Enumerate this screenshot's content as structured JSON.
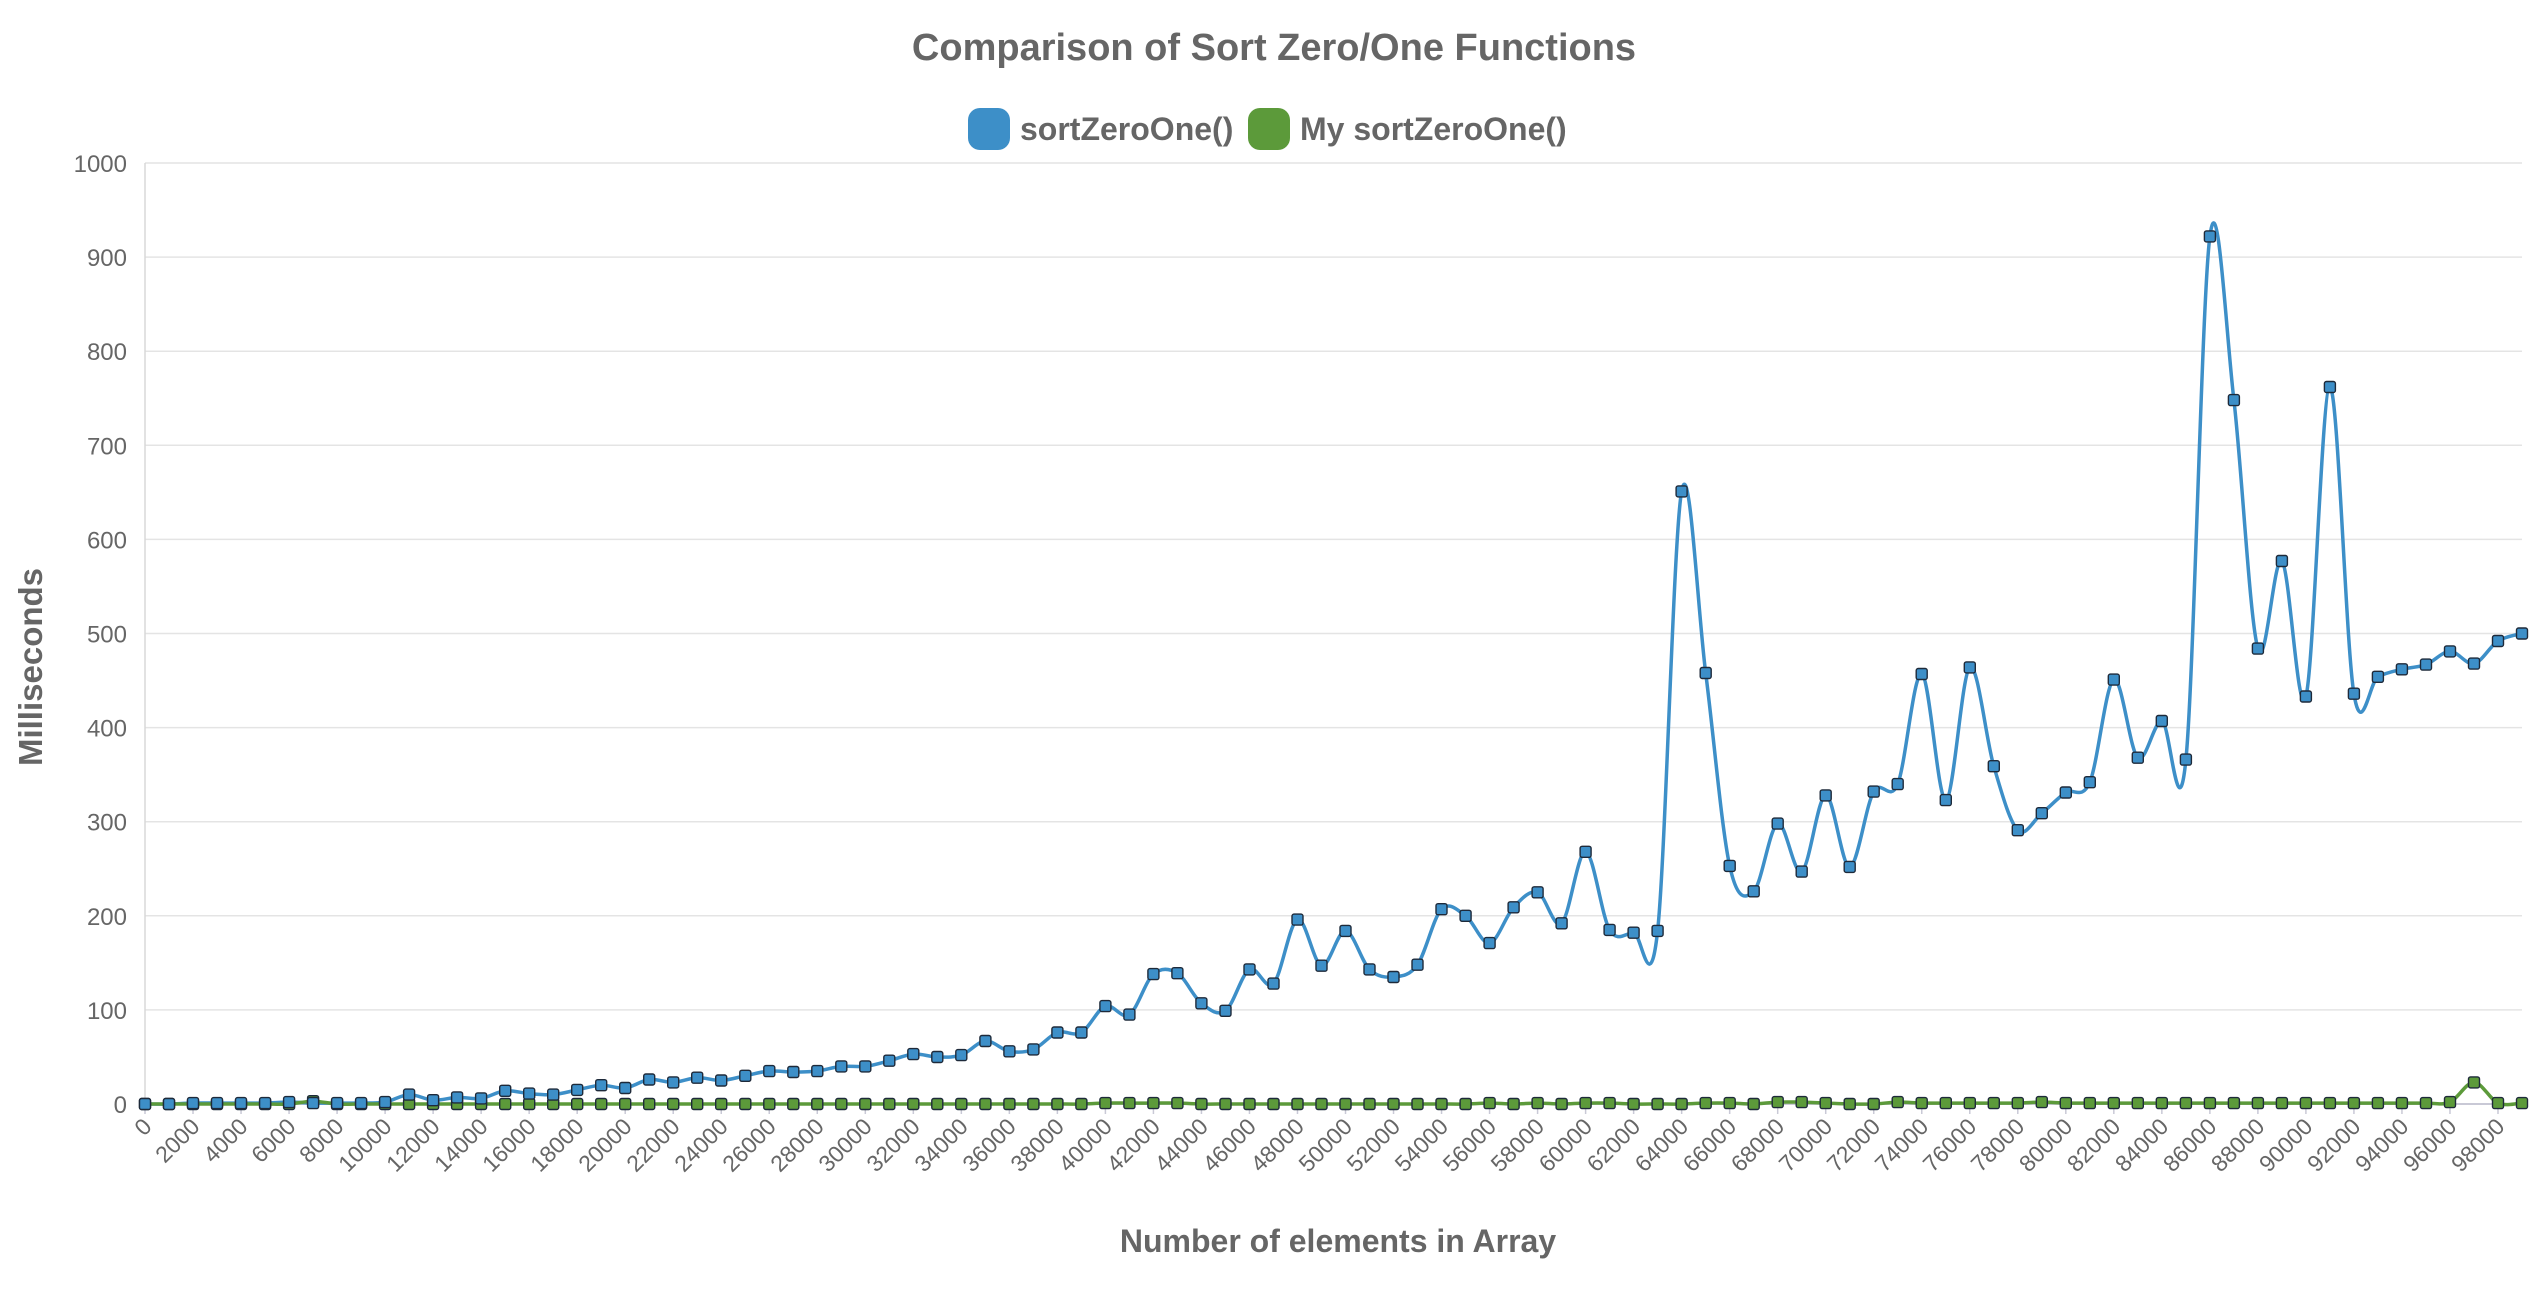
{
  "chart_data": {
    "type": "line",
    "title": "Comparison of Sort Zero/One Functions",
    "xlabel": "Number of elements in Array",
    "ylabel": "Milliseconds",
    "ylim": [
      0,
      1000
    ],
    "yticks": [
      0,
      100,
      200,
      300,
      400,
      500,
      600,
      700,
      800,
      900,
      1000
    ],
    "xlim": [
      0,
      99000
    ],
    "xticks": [
      0,
      2000,
      4000,
      6000,
      8000,
      10000,
      12000,
      14000,
      16000,
      18000,
      20000,
      22000,
      24000,
      26000,
      28000,
      30000,
      32000,
      34000,
      36000,
      38000,
      40000,
      42000,
      44000,
      46000,
      48000,
      50000,
      52000,
      54000,
      56000,
      58000,
      60000,
      62000,
      64000,
      66000,
      68000,
      70000,
      72000,
      74000,
      76000,
      78000,
      80000,
      82000,
      84000,
      86000,
      88000,
      90000,
      92000,
      94000,
      96000,
      98000
    ],
    "grid": true,
    "legend_position": "top-center",
    "x": [
      0,
      1000,
      2000,
      3000,
      4000,
      5000,
      6000,
      7000,
      8000,
      9000,
      10000,
      11000,
      12000,
      13000,
      14000,
      15000,
      16000,
      17000,
      18000,
      19000,
      20000,
      21000,
      22000,
      23000,
      24000,
      25000,
      26000,
      27000,
      28000,
      29000,
      30000,
      31000,
      32000,
      33000,
      34000,
      35000,
      36000,
      37000,
      38000,
      39000,
      40000,
      41000,
      42000,
      43000,
      44000,
      45000,
      46000,
      47000,
      48000,
      49000,
      50000,
      51000,
      52000,
      53000,
      54000,
      55000,
      56000,
      57000,
      58000,
      59000,
      60000,
      61000,
      62000,
      63000,
      64000,
      65000,
      66000,
      67000,
      68000,
      69000,
      70000,
      71000,
      72000,
      73000,
      74000,
      75000,
      76000,
      77000,
      78000,
      79000,
      80000,
      81000,
      82000,
      83000,
      84000,
      85000,
      86000,
      87000,
      88000,
      89000,
      90000,
      91000,
      92000,
      93000,
      94000,
      95000,
      96000,
      97000,
      98000,
      99000
    ],
    "series": [
      {
        "name": "sortZeroOne()",
        "color": "#3d8fc8",
        "values": [
          0,
          0,
          1,
          1,
          1,
          1,
          2,
          1,
          1,
          1,
          2,
          10,
          4,
          7,
          6,
          14,
          11,
          10,
          15,
          20,
          17,
          26,
          23,
          28,
          25,
          30,
          35,
          34,
          35,
          40,
          40,
          46,
          53,
          50,
          52,
          67,
          56,
          58,
          76,
          76,
          104,
          95,
          138,
          139,
          107,
          99,
          143,
          128,
          196,
          147,
          184,
          143,
          135,
          148,
          207,
          200,
          171,
          209,
          225,
          192,
          268,
          185,
          182,
          184,
          651,
          458,
          253,
          226,
          298,
          247,
          328,
          252,
          332,
          340,
          457,
          323,
          464,
          359,
          291,
          309,
          331,
          342,
          451,
          368,
          407,
          366,
          922,
          748,
          484,
          577,
          433,
          762,
          436,
          454,
          462,
          467,
          481,
          468,
          492,
          500
        ]
      },
      {
        "name": "My sortZeroOne()",
        "color": "#5c9a3a",
        "values": [
          0,
          0,
          0,
          0,
          0,
          0,
          0,
          3,
          0,
          0,
          0,
          0,
          0,
          0,
          0,
          0,
          0,
          0,
          0,
          0,
          0,
          0,
          0,
          0,
          0,
          0,
          0,
          0,
          0,
          0,
          0,
          0,
          0,
          0,
          0,
          0,
          0,
          0,
          0,
          0,
          1,
          1,
          1,
          1,
          0,
          0,
          0,
          0,
          0,
          0,
          0,
          0,
          0,
          0,
          0,
          0,
          1,
          0,
          1,
          0,
          1,
          1,
          0,
          0,
          0,
          1,
          1,
          0,
          2,
          2,
          1,
          0,
          0,
          2,
          1,
          1,
          1,
          1,
          1,
          2,
          1,
          1,
          1,
          1,
          1,
          1,
          1,
          1,
          1,
          1,
          1,
          1,
          1,
          1,
          1,
          1,
          2,
          23,
          1,
          1
        ]
      }
    ]
  }
}
